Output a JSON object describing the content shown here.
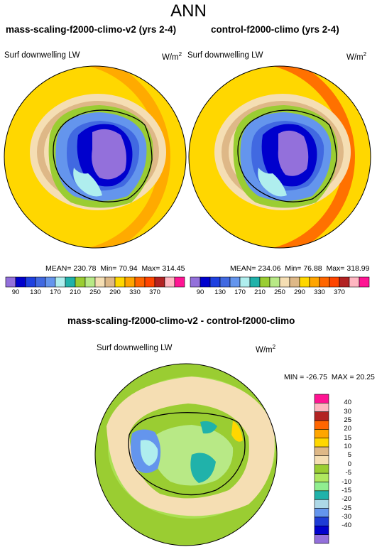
{
  "figure_title": "ANN",
  "panels": [
    {
      "title": "mass-scaling-f2000-climo-v2 (yrs 2-4)",
      "variable": "Surf downwelling LW",
      "units_base": "W/m",
      "units_exp": "2",
      "stats": {
        "mean_label": "MEAN=",
        "mean": "230.78",
        "min_label": "Min=",
        "min": "70.94",
        "max_label": "Max=",
        "max": "314.45"
      }
    },
    {
      "title": "control-f2000-climo (yrs 2-4)",
      "variable": "Surf downwelling LW",
      "units_base": "W/m",
      "units_exp": "2",
      "stats": {
        "mean_label": "MEAN=",
        "mean": "234.06",
        "min_label": "Min=",
        "min": "76.88",
        "max_label": "Max=",
        "max": "318.99"
      }
    },
    {
      "title": "mass-scaling-f2000-climo-v2 - control-f2000-climo",
      "variable": "Surf downwelling LW",
      "units_base": "W/m",
      "units_exp": "2",
      "stats": {
        "min_label": "MIN =",
        "min": "-26.75",
        "max_label": "MAX =",
        "max": "20.25"
      }
    }
  ],
  "colorbar_main": {
    "colors": [
      "#9370DB",
      "#0000CD",
      "#1E40E0",
      "#4169E1",
      "#6495ED",
      "#AFEEEE",
      "#20B2AA",
      "#9ACD32",
      "#B8E986",
      "#F5DEB3",
      "#DEB887",
      "#FFD700",
      "#FFA500",
      "#FF6600",
      "#FF4500",
      "#B22222",
      "#FFB6C1",
      "#FF1493"
    ],
    "tick_labels": [
      "90",
      "130",
      "170",
      "210",
      "250",
      "290",
      "330",
      "370"
    ]
  },
  "colorbar_diff": {
    "colors": [
      "#9370DB",
      "#0000CD",
      "#1E3CD6",
      "#6495ED",
      "#ADD8E6",
      "#20B2AA",
      "#90EE90",
      "#B0E860",
      "#9ACD32",
      "#F5DEB3",
      "#DEB887",
      "#FFD700",
      "#FFA500",
      "#FF6600",
      "#B22222",
      "#FFB6C1",
      "#FF1493"
    ],
    "tick_labels": [
      "40",
      "30",
      "25",
      "20",
      "15",
      "10",
      "5",
      "0",
      "-5",
      "-10",
      "-15",
      "-20",
      "-25",
      "-30",
      "-40"
    ]
  },
  "chart_data": [
    {
      "type": "heatmap",
      "projection": "south polar stereographic",
      "title": "mass-scaling-f2000-climo-v2 (yrs 2-4)",
      "variable": "Surf downwelling LW",
      "units": "W/m2",
      "mean": 230.78,
      "min": 70.94,
      "max": 314.45,
      "contour_levels": [
        90,
        110,
        130,
        150,
        170,
        190,
        210,
        230,
        250,
        270,
        290,
        310,
        330,
        350,
        370
      ]
    },
    {
      "type": "heatmap",
      "projection": "south polar stereographic",
      "title": "control-f2000-climo (yrs 2-4)",
      "variable": "Surf downwelling LW",
      "units": "W/m2",
      "mean": 234.06,
      "min": 76.88,
      "max": 318.99,
      "contour_levels": [
        90,
        110,
        130,
        150,
        170,
        190,
        210,
        230,
        250,
        270,
        290,
        310,
        330,
        350,
        370
      ]
    },
    {
      "type": "heatmap",
      "projection": "south polar stereographic",
      "title": "mass-scaling-f2000-climo-v2 - control-f2000-climo",
      "variable": "Surf downwelling LW",
      "units": "W/m2",
      "min": -26.75,
      "max": 20.25,
      "contour_levels": [
        -40,
        -30,
        -25,
        -20,
        -15,
        -10,
        -5,
        0,
        5,
        10,
        15,
        20,
        25,
        30,
        40
      ]
    }
  ]
}
